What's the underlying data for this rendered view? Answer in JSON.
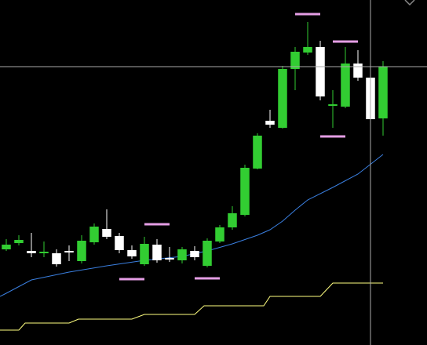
{
  "chart_data": {
    "type": "candlestick",
    "x": [
      0,
      1,
      2,
      3,
      4,
      5,
      6,
      7,
      8,
      9,
      10,
      11,
      12,
      13,
      14,
      15,
      16,
      17,
      18,
      19,
      20,
      21,
      22,
      23,
      24,
      25,
      26,
      27,
      28,
      29,
      30
    ],
    "open": [
      122,
      130,
      120,
      117,
      117,
      120,
      107,
      131,
      148,
      139,
      121,
      103,
      128,
      111,
      108,
      120,
      101,
      132,
      150,
      166,
      225,
      286,
      277,
      352,
      373,
      380,
      305,
      304,
      359,
      341,
      289
    ],
    "high": [
      135,
      140,
      143,
      132,
      122,
      127,
      140,
      155,
      173,
      143,
      127,
      138,
      135,
      125,
      125,
      126,
      136,
      153,
      177,
      230,
      270,
      300,
      356,
      380,
      412,
      388,
      325,
      380,
      376,
      347,
      362
    ],
    "low": [
      120,
      127,
      112,
      112,
      100,
      107,
      104,
      128,
      135,
      117,
      110,
      101,
      105,
      106,
      104,
      108,
      99,
      130,
      147,
      164,
      224,
      277,
      276,
      325,
      370,
      312,
      277,
      302,
      337,
      284,
      267
    ],
    "close": [
      128,
      134,
      117,
      119,
      103,
      118,
      133,
      151,
      138,
      121,
      113,
      129,
      108,
      109,
      122,
      112,
      133,
      150,
      168,
      226,
      267,
      281,
      352,
      374,
      380,
      317,
      307,
      359,
      341,
      288,
      355
    ],
    "up_color": "#32cd32",
    "down_color": "#ffffff",
    "xlim": [
      -0.5,
      33.5
    ],
    "ylim": [
      0,
      440
    ],
    "lines": [
      {
        "color": "#3a7fe0",
        "x": [
          -0.5,
          0,
          2,
          5,
          8,
          11,
          14,
          16,
          18,
          20,
          21,
          22,
          23,
          24,
          26,
          28,
          30
        ],
        "values": [
          62,
          66,
          83,
          93,
          101,
          108,
          113,
          120,
          129,
          140,
          147,
          158,
          172,
          185,
          201,
          218,
          243
        ]
      },
      {
        "color": "#ffff80",
        "x": [
          -0.5,
          1,
          1.5,
          5,
          5.75,
          10,
          11,
          15,
          15.75,
          20.5,
          21,
          25,
          26,
          30
        ],
        "values": [
          19,
          19,
          28,
          28,
          33,
          33,
          39,
          39,
          50,
          50,
          62,
          62,
          79,
          79
        ]
      }
    ],
    "levels": {
      "color": "#e59ee5",
      "items": [
        {
          "x": [
            23,
            25
          ],
          "value": 422
        },
        {
          "x": [
            26,
            28
          ],
          "value": 387
        },
        {
          "x": [
            25,
            27
          ],
          "value": 266
        },
        {
          "x": [
            9,
            11
          ],
          "value": 84
        },
        {
          "x": [
            11,
            13
          ],
          "value": 154
        },
        {
          "x": [
            15,
            17
          ],
          "value": 85
        }
      ]
    },
    "crosshair": {
      "x": 29,
      "value": 355,
      "color": "#aaaaaa"
    }
  }
}
